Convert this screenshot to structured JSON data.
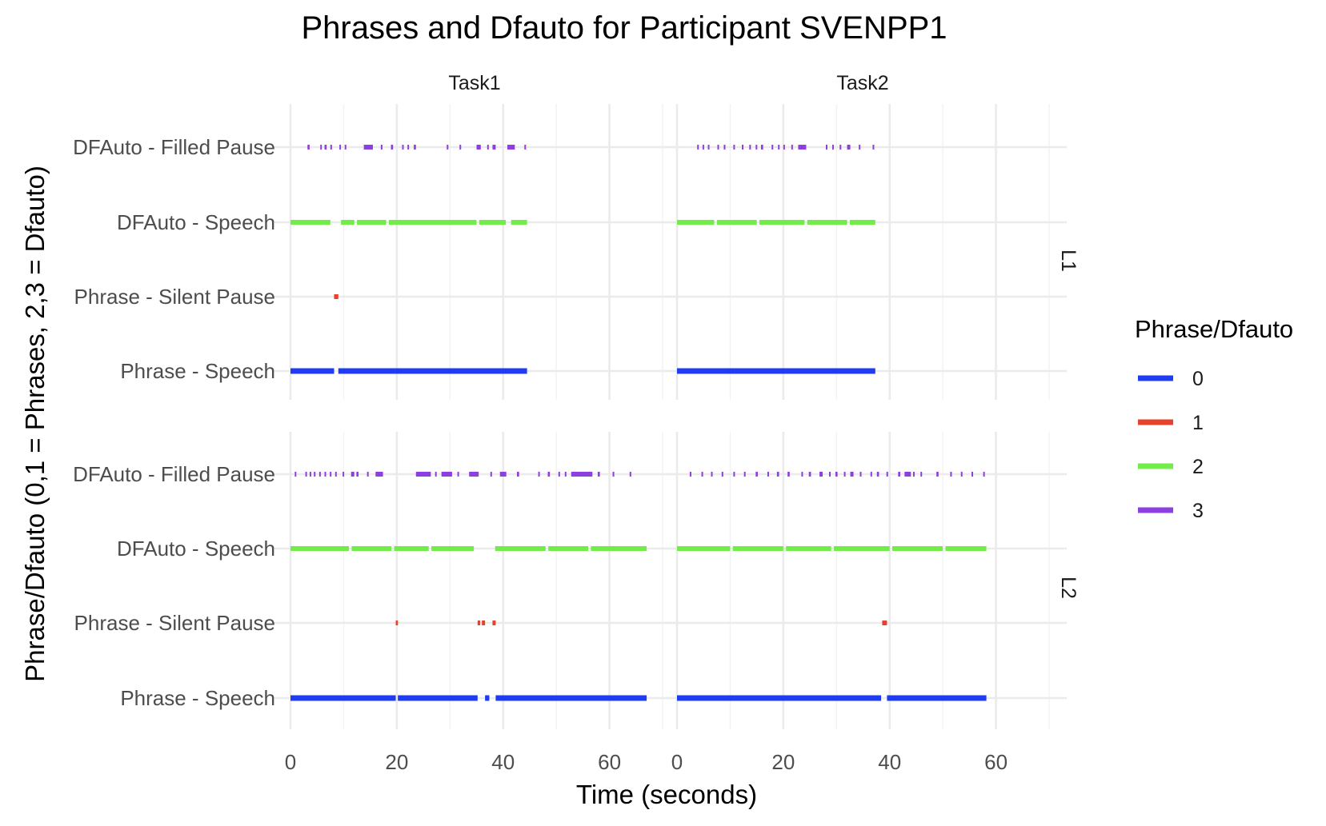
{
  "chart_data": {
    "type": "segment",
    "title": "Phrases and Dfauto for Participant SVENPP1",
    "xlabel": "Time (seconds)",
    "ylabel": "Phrase/Dfauto (0,1 = Phrases, 2,3 = Dfauto)",
    "xlim": [
      0,
      70
    ],
    "x_ticks": [
      0,
      20,
      40,
      60
    ],
    "grid": true,
    "y_categories": [
      "DFAuto - Filled Pause",
      "DFAuto - Speech",
      "Phrase - Silent Pause",
      "Phrase - Speech"
    ],
    "facet_columns": [
      "Task1",
      "Task2"
    ],
    "facet_rows": [
      "L1",
      "L2"
    ],
    "legend": {
      "title": "Phrase/Dfauto",
      "position": "right",
      "entries": [
        {
          "label": "0",
          "color": "#1f3cf2"
        },
        {
          "label": "1",
          "color": "#e8412c"
        },
        {
          "label": "2",
          "color": "#72ec49"
        },
        {
          "label": "3",
          "color": "#8e3fe0"
        }
      ]
    },
    "panels": [
      {
        "column": "Task1",
        "row": "L1",
        "series": [
          {
            "code": "0",
            "category": "Phrase - Speech",
            "segments": [
              [
                0,
                8.2
              ],
              [
                9.0,
                44.5
              ]
            ]
          },
          {
            "code": "1",
            "category": "Phrase - Silent Pause",
            "segments": [
              [
                8.2,
                9.0
              ]
            ]
          },
          {
            "code": "2",
            "category": "DFAuto - Speech",
            "segments": [
              [
                0,
                7.5
              ],
              [
                9.5,
                12.0
              ],
              [
                12.5,
                18.0
              ],
              [
                18.5,
                35.0
              ],
              [
                35.5,
                40.5
              ],
              [
                41.5,
                44.5
              ]
            ]
          },
          {
            "code": "3",
            "category": "DFAuto - Filled Pause",
            "segments": [
              [
                3.2,
                3.6
              ],
              [
                5.6,
                5.8
              ],
              [
                6.4,
                6.8
              ],
              [
                7.5,
                7.8
              ],
              [
                9.2,
                9.5
              ],
              [
                10.2,
                10.5
              ],
              [
                13.8,
                15.5
              ],
              [
                17.0,
                17.2
              ],
              [
                18.9,
                19.3
              ],
              [
                21.0,
                21.2
              ],
              [
                22.0,
                22.3
              ],
              [
                23.2,
                23.6
              ],
              [
                29.4,
                29.6
              ],
              [
                31.8,
                32.0
              ],
              [
                35.0,
                35.8
              ],
              [
                37.0,
                37.3
              ],
              [
                38.0,
                38.6
              ],
              [
                40.8,
                42.2
              ],
              [
                44.0,
                44.2
              ]
            ]
          }
        ]
      },
      {
        "column": "Task2",
        "row": "L1",
        "series": [
          {
            "code": "0",
            "category": "Phrase - Speech",
            "segments": [
              [
                0,
                37.3
              ]
            ]
          },
          {
            "code": "2",
            "category": "DFAuto - Speech",
            "segments": [
              [
                0,
                7.0
              ],
              [
                7.5,
                15.0
              ],
              [
                15.5,
                24.0
              ],
              [
                24.5,
                32.0
              ],
              [
                32.5,
                37.3
              ]
            ]
          },
          {
            "code": "3",
            "category": "DFAuto - Filled Pause",
            "segments": [
              [
                3.8,
                4.1
              ],
              [
                4.8,
                5.1
              ],
              [
                5.8,
                6.1
              ],
              [
                7.6,
                7.8
              ],
              [
                8.8,
                9.0
              ],
              [
                10.6,
                10.8
              ],
              [
                12.2,
                12.5
              ],
              [
                13.6,
                13.8
              ],
              [
                14.8,
                15.0
              ],
              [
                15.8,
                16.2
              ],
              [
                17.8,
                18.1
              ],
              [
                19.0,
                19.2
              ],
              [
                20.0,
                20.3
              ],
              [
                21.5,
                21.8
              ],
              [
                22.8,
                24.3
              ],
              [
                28.0,
                28.2
              ],
              [
                29.2,
                29.4
              ],
              [
                30.6,
                30.8
              ],
              [
                32.0,
                32.6
              ],
              [
                34.2,
                34.4
              ],
              [
                36.8,
                37.0
              ]
            ]
          }
        ]
      },
      {
        "column": "Task1",
        "row": "L2",
        "series": [
          {
            "code": "0",
            "category": "Phrase - Speech",
            "segments": [
              [
                0,
                19.8
              ],
              [
                20.2,
                35.2
              ],
              [
                36.6,
                37.4
              ],
              [
                38.6,
                67.0
              ]
            ]
          },
          {
            "code": "1",
            "category": "Phrase - Silent Pause",
            "segments": [
              [
                19.8,
                20.2
              ],
              [
                35.2,
                35.7
              ],
              [
                36.0,
                36.6
              ],
              [
                38.0,
                38.6
              ]
            ]
          },
          {
            "code": "2",
            "category": "DFAuto - Speech",
            "segments": [
              [
                0,
                11.0
              ],
              [
                11.5,
                19.0
              ],
              [
                19.5,
                26.0
              ],
              [
                26.5,
                34.5
              ],
              [
                38.5,
                48.0
              ],
              [
                48.5,
                56.0
              ],
              [
                56.5,
                67.0
              ]
            ]
          },
          {
            "code": "3",
            "category": "DFAuto - Filled Pause",
            "segments": [
              [
                0.8,
                1.0
              ],
              [
                2.8,
                3.0
              ],
              [
                3.6,
                3.8
              ],
              [
                4.4,
                4.6
              ],
              [
                5.4,
                5.6
              ],
              [
                6.4,
                6.6
              ],
              [
                7.4,
                7.6
              ],
              [
                8.4,
                8.6
              ],
              [
                9.8,
                10.0
              ],
              [
                11.4,
                12.0
              ],
              [
                12.4,
                12.8
              ],
              [
                14.4,
                14.6
              ],
              [
                16.0,
                17.4
              ],
              [
                23.6,
                26.4
              ],
              [
                27.2,
                27.4
              ],
              [
                28.4,
                30.4
              ],
              [
                31.4,
                31.6
              ],
              [
                33.6,
                35.4
              ],
              [
                37.6,
                37.8
              ],
              [
                39.4,
                40.6
              ],
              [
                42.6,
                43.0
              ],
              [
                46.6,
                46.8
              ],
              [
                48.4,
                48.8
              ],
              [
                50.4,
                50.6
              ],
              [
                51.6,
                51.8
              ],
              [
                52.8,
                56.8
              ],
              [
                57.8,
                58.2
              ],
              [
                60.6,
                60.8
              ],
              [
                63.8,
                64.0
              ]
            ]
          }
        ]
      },
      {
        "column": "Task2",
        "row": "L2",
        "series": [
          {
            "code": "0",
            "category": "Phrase - Speech",
            "segments": [
              [
                0,
                38.4
              ],
              [
                39.5,
                58.2
              ]
            ]
          },
          {
            "code": "1",
            "category": "Phrase - Silent Pause",
            "segments": [
              [
                38.6,
                39.5
              ]
            ]
          },
          {
            "code": "2",
            "category": "DFAuto - Speech",
            "segments": [
              [
                0,
                10.0
              ],
              [
                10.5,
                20.0
              ],
              [
                20.5,
                29.0
              ],
              [
                29.5,
                40.0
              ],
              [
                40.5,
                50.0
              ],
              [
                50.5,
                58.2
              ]
            ]
          },
          {
            "code": "3",
            "category": "DFAuto - Filled Pause",
            "segments": [
              [
                2.4,
                2.6
              ],
              [
                4.6,
                4.8
              ],
              [
                6.4,
                6.6
              ],
              [
                8.4,
                8.6
              ],
              [
                10.6,
                10.8
              ],
              [
                12.6,
                12.8
              ],
              [
                14.8,
                15.2
              ],
              [
                17.0,
                17.2
              ],
              [
                18.8,
                19.2
              ],
              [
                20.8,
                21.2
              ],
              [
                23.4,
                23.6
              ],
              [
                24.8,
                25.2
              ],
              [
                26.8,
                27.4
              ],
              [
                28.6,
                28.8
              ],
              [
                29.8,
                30.2
              ],
              [
                31.4,
                31.6
              ],
              [
                32.6,
                33.2
              ],
              [
                34.4,
                34.6
              ],
              [
                36.4,
                36.6
              ],
              [
                37.6,
                38.0
              ],
              [
                39.4,
                39.6
              ],
              [
                41.6,
                42.0
              ],
              [
                42.8,
                44.0
              ],
              [
                44.4,
                44.6
              ],
              [
                45.8,
                46.0
              ],
              [
                48.8,
                49.2
              ],
              [
                51.4,
                51.6
              ],
              [
                53.4,
                53.6
              ],
              [
                55.4,
                55.6
              ],
              [
                57.6,
                57.8
              ]
            ]
          }
        ]
      }
    ]
  }
}
